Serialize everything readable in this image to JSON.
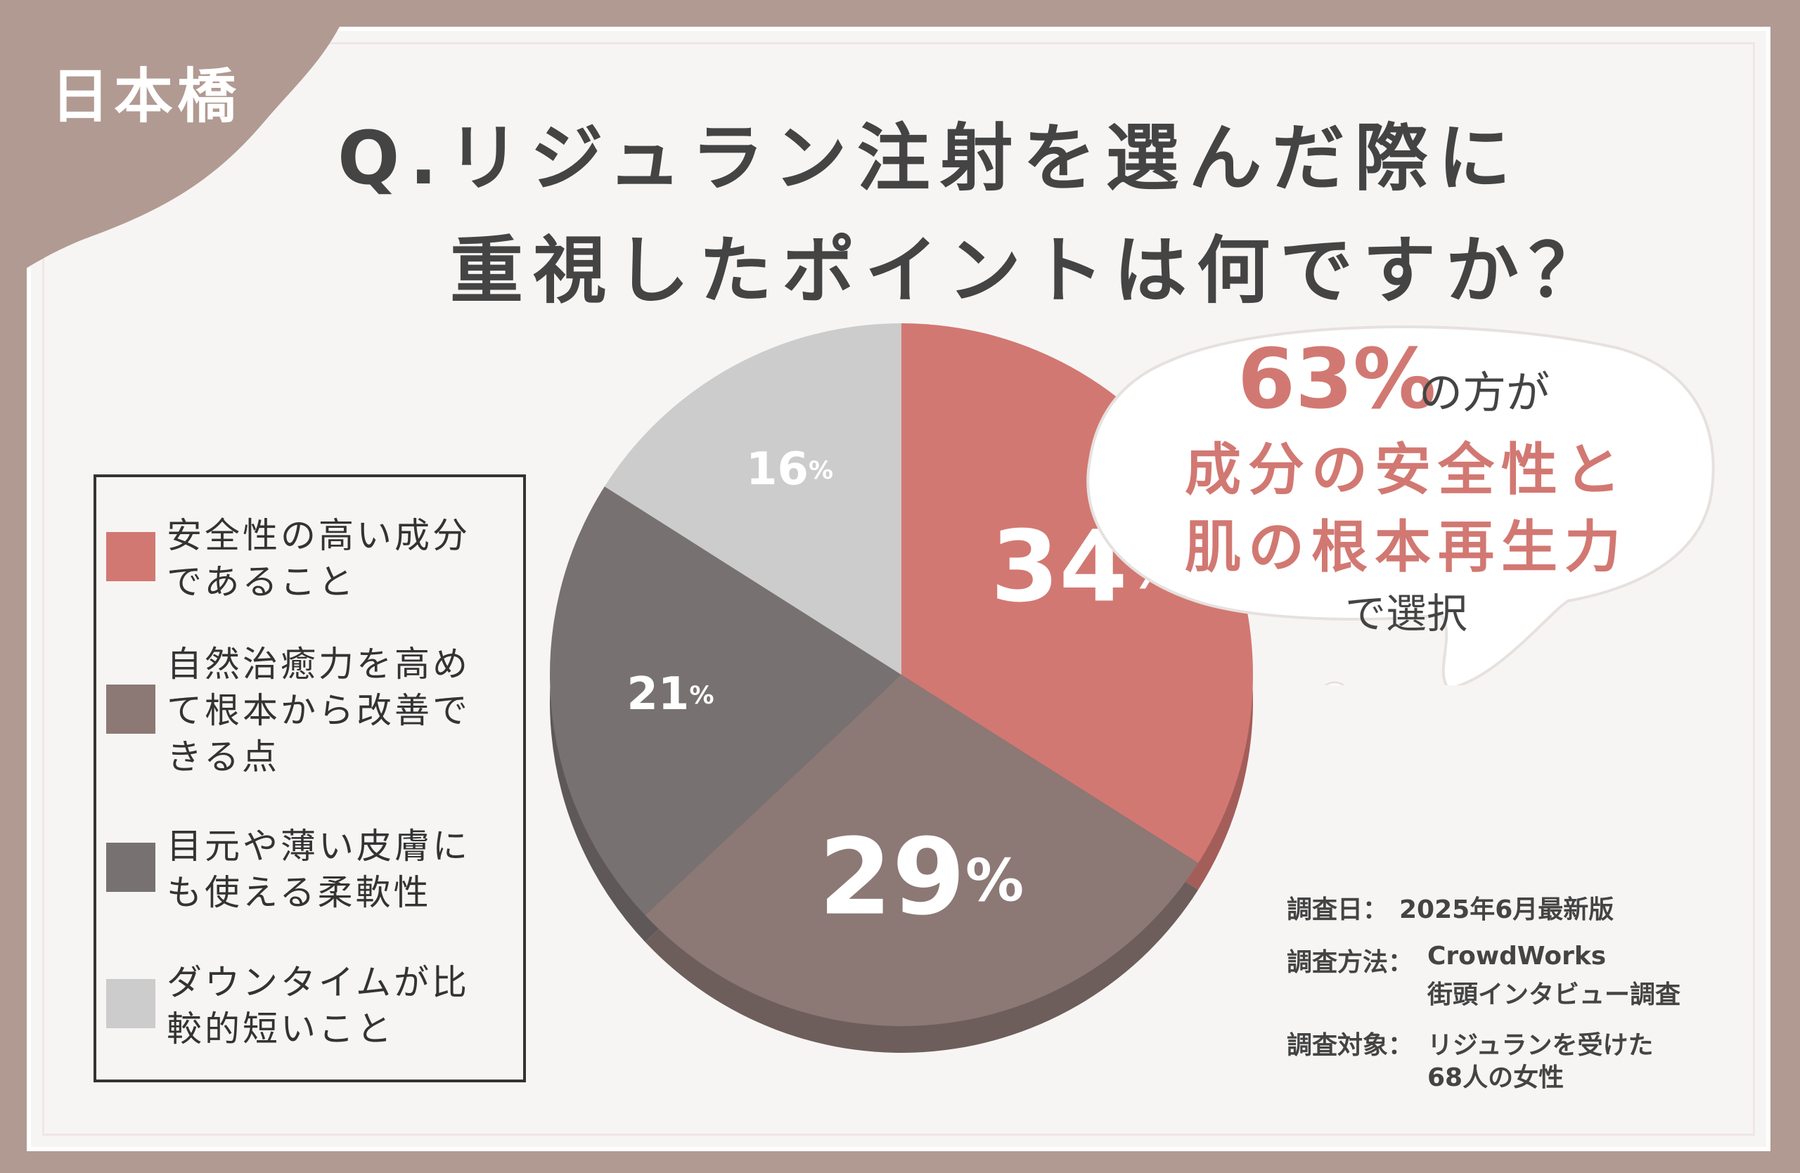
{
  "location": "日本橋",
  "title": {
    "line1": "Q.リジュラン注射を選んだ際に",
    "line2": "重視したポイントは何ですか？"
  },
  "chart_data": {
    "type": "pie",
    "unit": "%",
    "slices": [
      {
        "label": "安全性の高い成分であること",
        "value": 34,
        "color": "#d27872",
        "text_color": "#ffffff"
      },
      {
        "label": "自然治癒力を高めて根本から改善できる点",
        "value": 29,
        "color": "#8c7875",
        "text_color": "#ffffff"
      },
      {
        "label": "目元や薄い皮膚にも使える柔軟性",
        "value": 21,
        "color": "#787172",
        "text_color": "#ffffff"
      },
      {
        "label": "ダウンタイムが比較的短いこと",
        "value": 16,
        "color": "#cccccc",
        "text_color": "#ffffff"
      }
    ],
    "start": "top",
    "direction": "clockwise",
    "legend_position": "left"
  },
  "callout": {
    "percent": "63%",
    "suffix": "の方が",
    "line1": "成分の安全性と",
    "line2": "肌の根本再生力",
    "line3": "で選択"
  },
  "survey": {
    "date_label": "調査日：",
    "date_value": "2025年6月最新版",
    "method_label": "調査方法：",
    "method_value_1": "CrowdWorks",
    "method_value_2": "街頭インタビュー調査",
    "target_label": "調査対象：",
    "target_value_1": "リジュランを受けた",
    "target_value_2": "68人の女性"
  },
  "colors": {
    "background": "#b19a92",
    "accent": "#d27872",
    "text": "#444444"
  }
}
